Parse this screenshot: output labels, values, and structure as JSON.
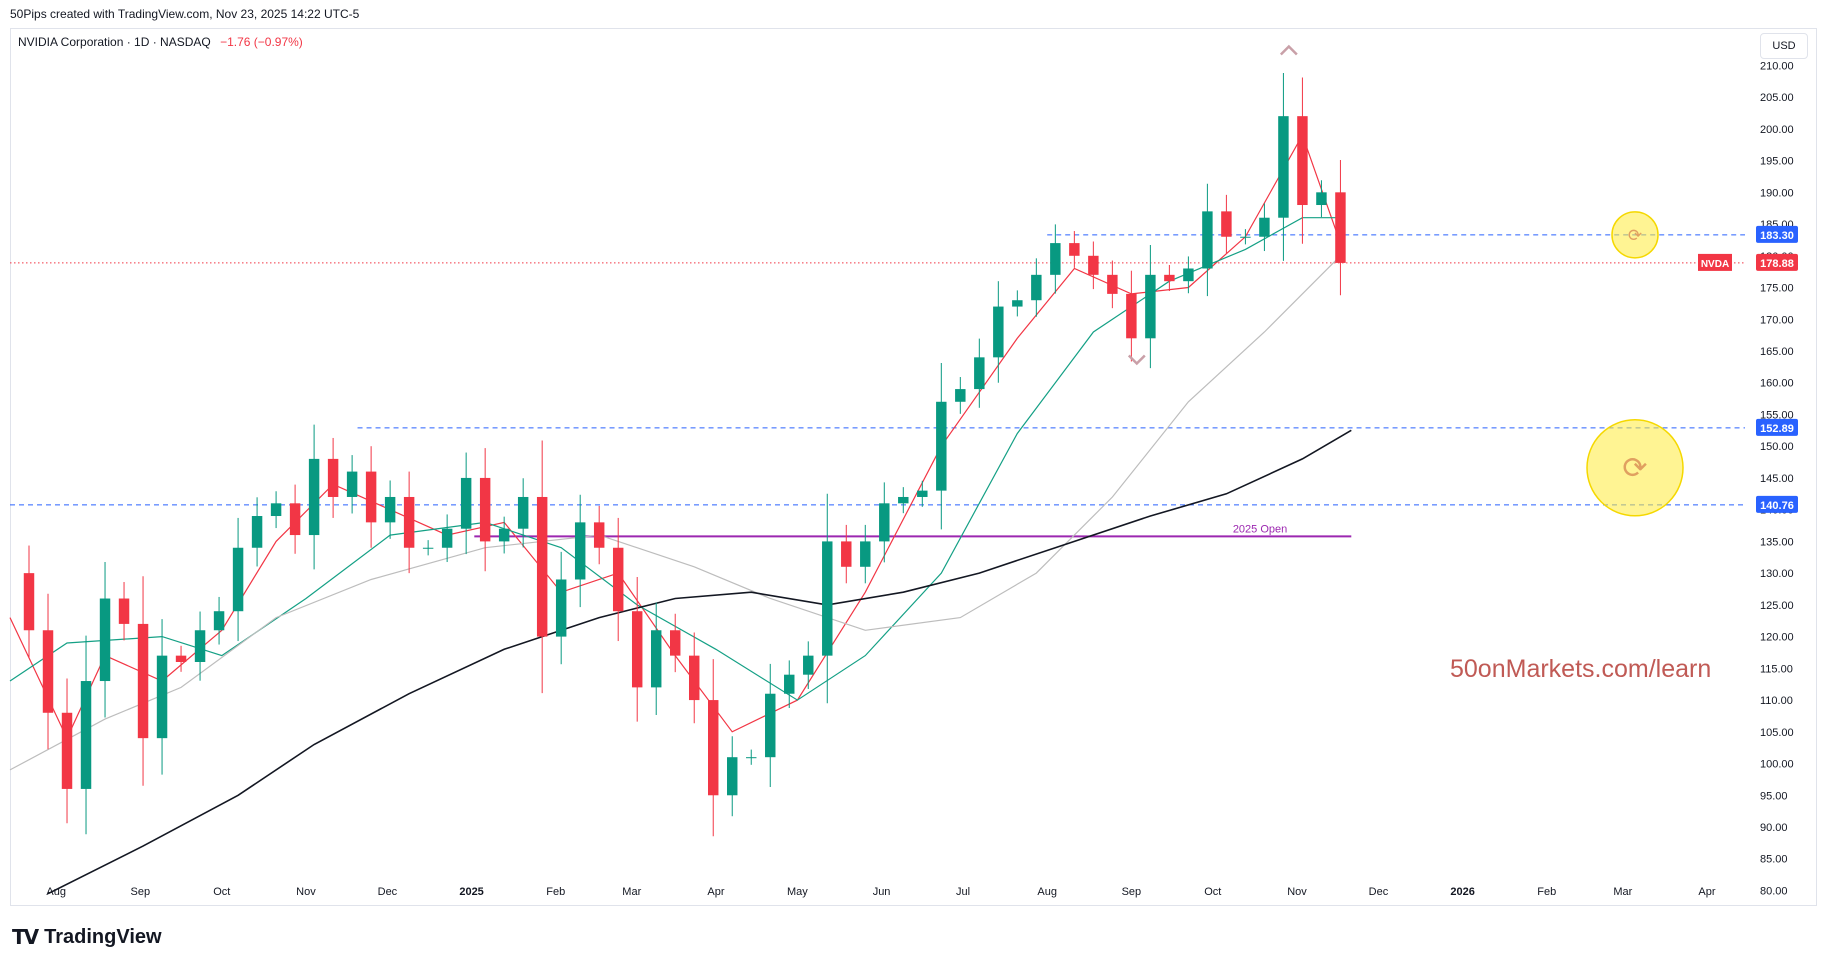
{
  "header": {
    "credit": "50Pips created with TradingView.com, Nov 23, 2025 14:22 UTC-5",
    "symbol_line": "NVIDIA Corporation · 1D · NASDAQ",
    "change": "−1.76 (−0.97%)",
    "currency": "USD"
  },
  "watermark": "50onMarkets.com/learn",
  "brand": {
    "logo_icon": "tradingview-logo-icon",
    "name": "TradingView"
  },
  "colors": {
    "up": "#089981",
    "down": "#f23645",
    "level": "#2962ff",
    "ema_fast": "#f23645",
    "ma_mid": "#14a085",
    "ma_slow": "#bdbdbd",
    "ma_long": "#131722",
    "year_open": "#9c27b0",
    "watermark": "#c05a55",
    "alert_circle": "#ffeb3b"
  },
  "chart_data": {
    "type": "line",
    "title": "NVIDIA Corporation · 1D · NASDAQ",
    "timeframe": "1D",
    "y_axis": {
      "ticks": [
        80,
        85,
        90,
        95,
        100,
        105,
        110,
        115,
        120,
        125,
        130,
        135,
        140,
        145,
        150,
        155,
        160,
        165,
        170,
        175,
        180,
        185,
        190,
        195,
        200,
        205,
        210
      ],
      "tick_labels": [
        "80.00",
        "85.00",
        "90.00",
        "95.00",
        "100.00",
        "105.00",
        "110.00",
        "115.00",
        "120.00",
        "125.00",
        "130.00",
        "135.00",
        "140.00",
        "145.00",
        "150.00",
        "155.00",
        "160.00",
        "165.00",
        "170.00",
        "175.00",
        "180.00",
        "185.00",
        "190.00",
        "195.00",
        "200.00",
        "205.00",
        "210.00"
      ],
      "ylim": [
        78.5,
        214
      ],
      "position": "right"
    },
    "x_axis": {
      "xlim": [
        "2024-07-15",
        "2026-04-15"
      ],
      "ticks": [
        "2024-08-01",
        "2024-09-01",
        "2024-10-01",
        "2024-11-01",
        "2024-12-01",
        "2025-01-01",
        "2025-02-01",
        "2025-03-01",
        "2025-04-01",
        "2025-05-01",
        "2025-06-01",
        "2025-07-01",
        "2025-08-01",
        "2025-09-01",
        "2025-10-01",
        "2025-11-01",
        "2025-12-01",
        "2026-01-01",
        "2026-02-01",
        "2026-03-01",
        "2026-04-01"
      ],
      "tick_labels": [
        "Aug",
        "Sep",
        "Oct",
        "Nov",
        "Dec",
        "2025",
        "Feb",
        "Mar",
        "Apr",
        "May",
        "Jun",
        "Jul",
        "Aug",
        "Sep",
        "Oct",
        "Nov",
        "Dec",
        "2026",
        "Feb",
        "Mar",
        "Apr"
      ],
      "bold_labels": [
        "2025",
        "2026"
      ]
    },
    "price_series": [
      [
        "2024-07-15",
        130
      ],
      [
        "2024-07-22",
        121
      ],
      [
        "2024-07-29",
        108
      ],
      [
        "2024-08-05",
        96
      ],
      [
        "2024-08-12",
        113
      ],
      [
        "2024-08-19",
        126
      ],
      [
        "2024-08-26",
        122
      ],
      [
        "2024-09-02",
        104
      ],
      [
        "2024-09-09",
        117
      ],
      [
        "2024-09-16",
        116
      ],
      [
        "2024-09-23",
        121
      ],
      [
        "2024-09-30",
        124
      ],
      [
        "2024-10-07",
        134
      ],
      [
        "2024-10-14",
        139
      ],
      [
        "2024-10-21",
        141
      ],
      [
        "2024-10-28",
        136
      ],
      [
        "2024-11-04",
        148
      ],
      [
        "2024-11-11",
        142
      ],
      [
        "2024-11-18",
        146
      ],
      [
        "2024-11-25",
        138
      ],
      [
        "2024-12-02",
        142
      ],
      [
        "2024-12-09",
        134
      ],
      [
        "2024-12-16",
        134
      ],
      [
        "2024-12-23",
        137
      ],
      [
        "2024-12-30",
        145
      ],
      [
        "2025-01-06",
        135
      ],
      [
        "2025-01-13",
        137
      ],
      [
        "2025-01-20",
        142
      ],
      [
        "2025-01-27",
        120
      ],
      [
        "2025-02-03",
        129
      ],
      [
        "2025-02-10",
        138
      ],
      [
        "2025-02-17",
        134
      ],
      [
        "2025-02-24",
        124
      ],
      [
        "2025-03-03",
        112
      ],
      [
        "2025-03-10",
        121
      ],
      [
        "2025-03-17",
        117
      ],
      [
        "2025-03-24",
        110
      ],
      [
        "2025-03-31",
        95
      ],
      [
        "2025-04-07",
        101
      ],
      [
        "2025-04-14",
        101
      ],
      [
        "2025-04-21",
        111
      ],
      [
        "2025-04-28",
        114
      ],
      [
        "2025-05-05",
        117
      ],
      [
        "2025-05-12",
        135
      ],
      [
        "2025-05-19",
        131
      ],
      [
        "2025-05-26",
        135
      ],
      [
        "2025-06-02",
        141
      ],
      [
        "2025-06-09",
        142
      ],
      [
        "2025-06-16",
        143
      ],
      [
        "2025-06-23",
        157
      ],
      [
        "2025-06-30",
        159
      ],
      [
        "2025-07-07",
        164
      ],
      [
        "2025-07-14",
        172
      ],
      [
        "2025-07-21",
        173
      ],
      [
        "2025-07-28",
        177
      ],
      [
        "2025-08-04",
        182
      ],
      [
        "2025-08-11",
        180
      ],
      [
        "2025-08-18",
        177
      ],
      [
        "2025-08-25",
        174
      ],
      [
        "2025-09-01",
        167
      ],
      [
        "2025-09-08",
        177
      ],
      [
        "2025-09-15",
        176
      ],
      [
        "2025-09-22",
        178
      ],
      [
        "2025-09-29",
        187
      ],
      [
        "2025-10-06",
        183
      ],
      [
        "2025-10-13",
        183
      ],
      [
        "2025-10-20",
        186
      ],
      [
        "2025-10-27",
        202
      ],
      [
        "2025-11-03",
        188
      ],
      [
        "2025-11-10",
        190
      ],
      [
        "2025-11-17",
        178.88
      ]
    ],
    "series": [
      {
        "name": "",
        "color": "#f23645",
        "values": [
          [
            "2024-07-15",
            123
          ],
          [
            "2024-08-05",
            104
          ],
          [
            "2024-08-19",
            117
          ],
          [
            "2024-09-09",
            113
          ],
          [
            "2024-10-01",
            121
          ],
          [
            "2024-10-21",
            135
          ],
          [
            "2024-11-11",
            144
          ],
          [
            "2024-12-02",
            140
          ],
          [
            "2024-12-23",
            136
          ],
          [
            "2025-01-13",
            138
          ],
          [
            "2025-02-03",
            127
          ],
          [
            "2025-02-24",
            130
          ],
          [
            "2025-03-17",
            117
          ],
          [
            "2025-04-07",
            105
          ],
          [
            "2025-05-01",
            110
          ],
          [
            "2025-05-26",
            127
          ],
          [
            "2025-06-23",
            150
          ],
          [
            "2025-07-21",
            167
          ],
          [
            "2025-08-11",
            178
          ],
          [
            "2025-09-01",
            174
          ],
          [
            "2025-09-22",
            175
          ],
          [
            "2025-10-13",
            183
          ],
          [
            "2025-11-03",
            199
          ],
          [
            "2025-11-17",
            182
          ]
        ]
      },
      {
        "name": "",
        "color": "#14a085",
        "values": [
          [
            "2024-07-15",
            113
          ],
          [
            "2024-08-05",
            119
          ],
          [
            "2024-09-09",
            120
          ],
          [
            "2024-10-01",
            117
          ],
          [
            "2024-11-01",
            126
          ],
          [
            "2024-12-02",
            136
          ],
          [
            "2025-01-06",
            138
          ],
          [
            "2025-02-03",
            134
          ],
          [
            "2025-03-03",
            125
          ],
          [
            "2025-04-01",
            118
          ],
          [
            "2025-05-01",
            110
          ],
          [
            "2025-05-26",
            117
          ],
          [
            "2025-06-23",
            130
          ],
          [
            "2025-07-21",
            152
          ],
          [
            "2025-08-18",
            168
          ],
          [
            "2025-09-15",
            176
          ],
          [
            "2025-10-13",
            181
          ],
          [
            "2025-11-03",
            186
          ],
          [
            "2025-11-17",
            186
          ]
        ]
      },
      {
        "name": "",
        "color": "#bdbdbd",
        "values": [
          [
            "2024-07-15",
            99
          ],
          [
            "2024-08-19",
            107
          ],
          [
            "2024-09-16",
            112
          ],
          [
            "2024-10-21",
            123
          ],
          [
            "2024-11-25",
            129
          ],
          [
            "2025-01-06",
            134
          ],
          [
            "2025-02-17",
            136
          ],
          [
            "2025-03-24",
            131
          ],
          [
            "2025-04-21",
            126
          ],
          [
            "2025-05-26",
            121
          ],
          [
            "2025-06-30",
            123
          ],
          [
            "2025-07-28",
            130
          ],
          [
            "2025-08-25",
            142
          ],
          [
            "2025-09-22",
            157
          ],
          [
            "2025-10-20",
            168
          ],
          [
            "2025-11-17",
            180
          ]
        ]
      },
      {
        "name": "",
        "color": "#131722",
        "values": [
          [
            "2024-07-29",
            79.5
          ],
          [
            "2024-09-02",
            87
          ],
          [
            "2024-10-07",
            95
          ],
          [
            "2024-11-04",
            103
          ],
          [
            "2024-12-09",
            111
          ],
          [
            "2025-01-13",
            118
          ],
          [
            "2025-02-17",
            123
          ],
          [
            "2025-03-17",
            126
          ],
          [
            "2025-04-14",
            127
          ],
          [
            "2025-05-12",
            125
          ],
          [
            "2025-06-09",
            127
          ],
          [
            "2025-07-07",
            130
          ],
          [
            "2025-08-04",
            134
          ],
          [
            "2025-09-08",
            139
          ],
          [
            "2025-10-06",
            142.5
          ],
          [
            "2025-11-03",
            148
          ],
          [
            "2025-11-21",
            152.5
          ]
        ]
      }
    ],
    "horizontal_levels": [
      {
        "label": "183.30",
        "value": 183.3,
        "style": "dashed",
        "color": "#2962ff",
        "from": "2025-08-01"
      },
      {
        "label": "152.89",
        "value": 152.89,
        "style": "dashed",
        "color": "#2962ff",
        "from": "2024-11-20"
      },
      {
        "label": "140.76",
        "value": 140.76,
        "style": "dashed",
        "color": "#2962ff",
        "from": "2024-07-15"
      },
      {
        "label": "178.88",
        "value": 178.88,
        "style": "dotted",
        "color": "#f23645",
        "from": "2024-07-15",
        "tag": "NVDA"
      }
    ],
    "year_open_line": {
      "label": "2025 Open",
      "value": 135.8,
      "color": "#9c27b0",
      "from": "2025-01-02",
      "to": "2025-11-21"
    },
    "markers": [
      {
        "type": "chevron-up",
        "date": "2025-10-29",
        "value": 212.5
      },
      {
        "type": "chevron-down",
        "date": "2025-09-03",
        "value": 163.5
      }
    ],
    "alerts": [
      {
        "type": "alert-refresh-icon",
        "value": 183.3,
        "size": "small"
      },
      {
        "type": "alert-refresh-icon",
        "value": 146.6,
        "size": "large"
      }
    ],
    "grid": false,
    "legend": "top-left"
  }
}
